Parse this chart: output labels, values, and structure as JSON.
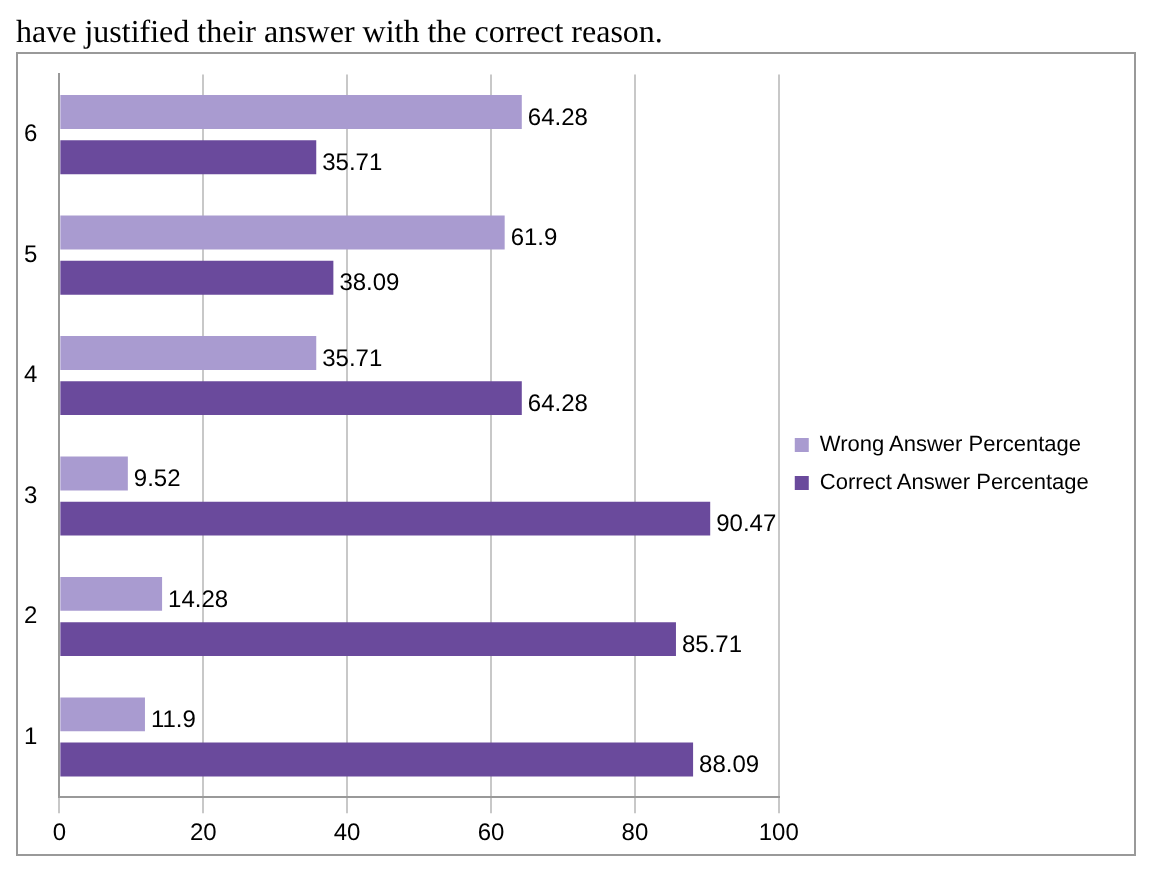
{
  "chart_data": {
    "type": "bar",
    "orientation": "horizontal",
    "annotations": [
      "have justified their answer with the correct reason."
    ],
    "categories": [
      "6",
      "5",
      "4",
      "3",
      "2",
      "1"
    ],
    "series": [
      {
        "name": "Wrong Answer Percentage",
        "color": "#a99bd0",
        "values": [
          64.28,
          61.9,
          35.71,
          9.52,
          14.28,
          11.9
        ]
      },
      {
        "name": "Correct Answer Percentage",
        "color": "#6a4a9c",
        "values": [
          35.71,
          38.09,
          64.28,
          90.47,
          85.71,
          88.09
        ]
      }
    ],
    "xlim": [
      0,
      100
    ],
    "xticks": [
      0,
      20,
      40,
      60,
      80,
      100
    ],
    "grid": "x",
    "legend": "right",
    "data_labels": true
  }
}
